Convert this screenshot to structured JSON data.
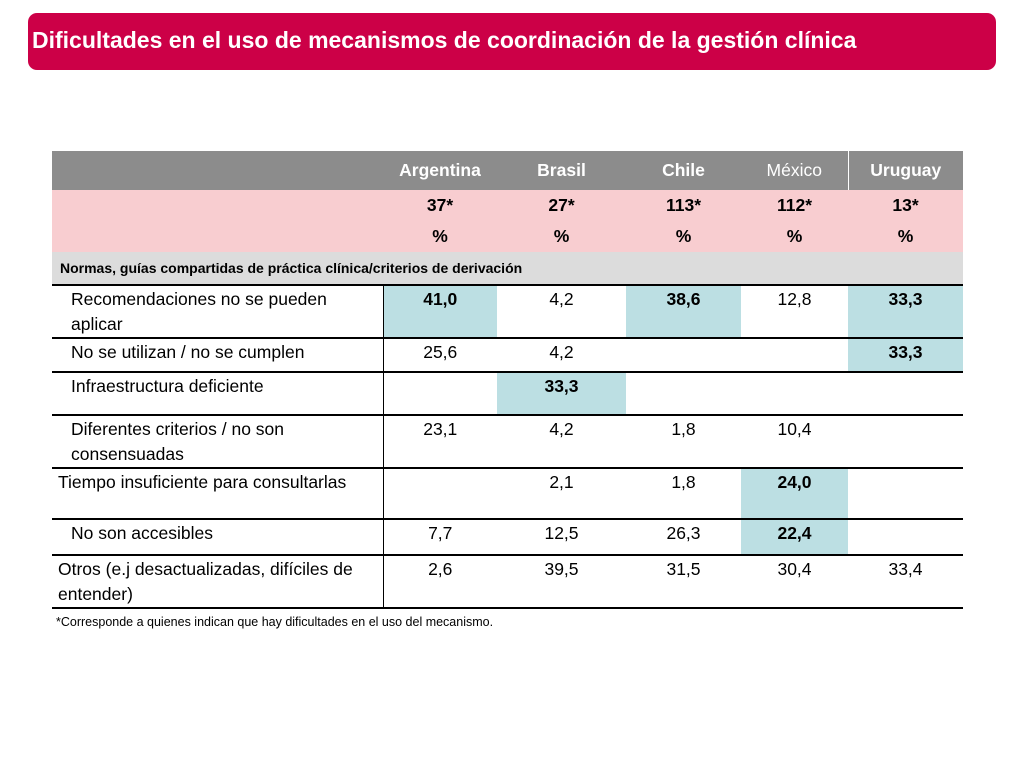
{
  "title": "Dificultades en el uso de mecanismos de coordinación de la gestión clínica",
  "columns": [
    "Argentina",
    "Brasil",
    "Chile",
    "México",
    "Uruguay"
  ],
  "counts": [
    "37*",
    "27*",
    "113*",
    "112*",
    "13*"
  ],
  "unit": "%",
  "section": "Normas, guías compartidas de práctica clínica/criterios de derivación",
  "rows": [
    {
      "label": "Recomendaciones no se pueden aplicar",
      "values": [
        "41,0",
        "4,2",
        "38,6",
        "12,8",
        "33,3"
      ]
    },
    {
      "label": "No se utilizan / no se cumplen",
      "values": [
        "25,6",
        "4,2",
        "",
        "",
        "33,3"
      ]
    },
    {
      "label": "Infraestructura deficiente",
      "values": [
        "",
        "33,3",
        "",
        "",
        ""
      ]
    },
    {
      "label": "Diferentes criterios / no son consensuadas",
      "values": [
        "23,1",
        "4,2",
        "1,8",
        "10,4",
        ""
      ]
    },
    {
      "label": "Tiempo insuficiente para consultarlas",
      "values": [
        "",
        "2,1",
        "1,8",
        "24,0",
        ""
      ]
    },
    {
      "label": "No son accesibles",
      "values": [
        "7,7",
        "12,5",
        "26,3",
        "22,4",
        ""
      ]
    },
    {
      "label": "Otros (e.j desactualizadas, difíciles de entender)",
      "values": [
        "2,6",
        "39,5",
        "31,5",
        "30,4",
        "33,4"
      ]
    }
  ],
  "footnote": "*Corresponde a quienes indican que hay dificultades en el uso del mecanismo.",
  "colors": {
    "title_bg": "#cc0047",
    "header_bg": "#8c8c8c",
    "count_bg": "#f8cdd0",
    "section_bg": "#dcdcdc",
    "highlight": "#bcdfe3"
  }
}
